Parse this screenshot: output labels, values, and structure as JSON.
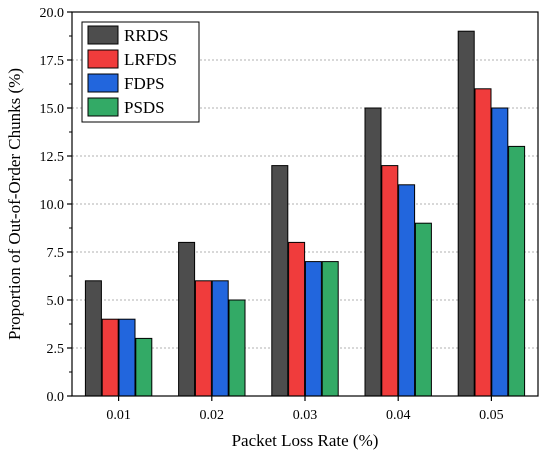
{
  "chart_data": {
    "type": "bar",
    "title": "",
    "xlabel": "Packet Loss Rate (%)",
    "ylabel": "Proportion of Out-of-Order Chunks (%)",
    "categories": [
      "0.01",
      "0.02",
      "0.03",
      "0.04",
      "0.05"
    ],
    "ylim": [
      0,
      20
    ],
    "yticks": [
      "0.0",
      "2.5",
      "5.0",
      "7.5",
      "10.0",
      "12.5",
      "15.0",
      "17.5",
      "20.0"
    ],
    "grid": "horizontal dashed",
    "legend_position": "top-left",
    "series": [
      {
        "name": "RRDS",
        "color": "#4d4d4d",
        "values": [
          6,
          8,
          12,
          15,
          19
        ]
      },
      {
        "name": "LRFDS",
        "color": "#f03c3c",
        "values": [
          4,
          6,
          8,
          12,
          16
        ]
      },
      {
        "name": "FDPS",
        "color": "#2266dd",
        "values": [
          4,
          6,
          7,
          11,
          15
        ]
      },
      {
        "name": "PSDS",
        "color": "#33aa66",
        "values": [
          3,
          5,
          7,
          9,
          13
        ]
      }
    ]
  }
}
